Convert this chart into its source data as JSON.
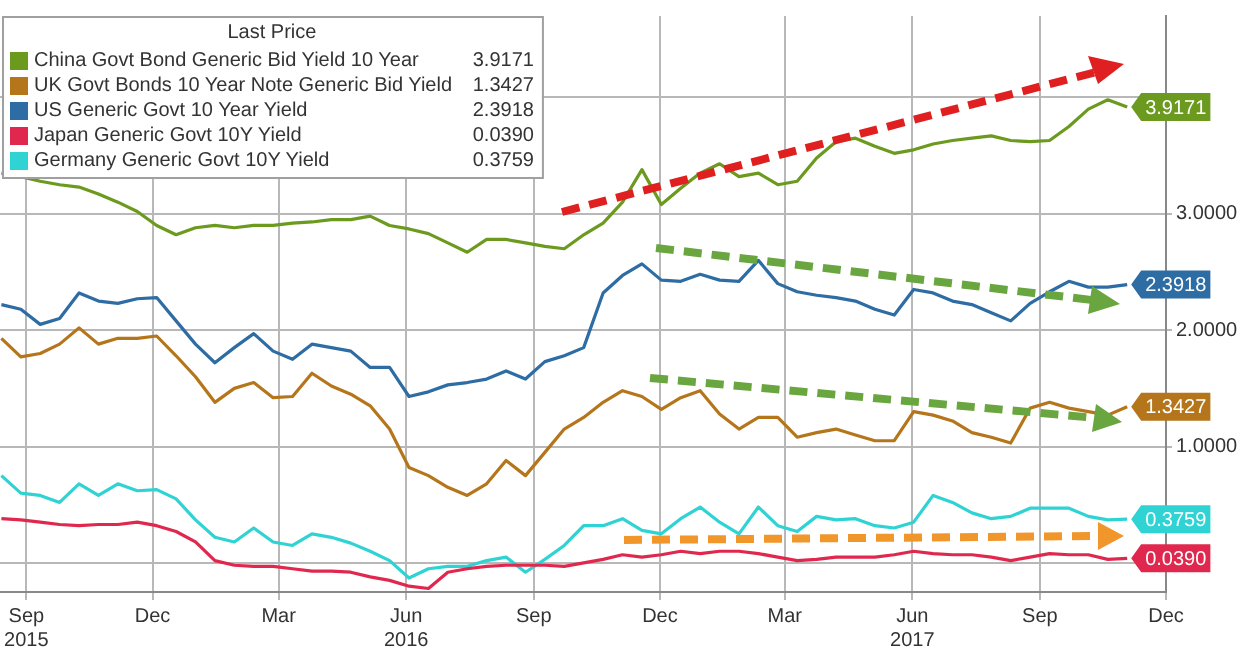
{
  "chart_data": {
    "type": "line",
    "legend_title": "Last Price",
    "legend": "top left",
    "grid": true,
    "marker": "none",
    "line_style": "solid",
    "x": [
      "2015-08-14",
      "2015-08-28",
      "2015-09-11",
      "2015-09-25",
      "2015-10-09",
      "2015-10-23",
      "2015-11-06",
      "2015-11-20",
      "2015-12-04",
      "2015-12-18",
      "2016-01-01",
      "2016-01-15",
      "2016-01-29",
      "2016-02-12",
      "2016-02-26",
      "2016-03-11",
      "2016-03-25",
      "2016-04-08",
      "2016-04-22",
      "2016-05-06",
      "2016-05-20",
      "2016-06-03",
      "2016-06-17",
      "2016-07-01",
      "2016-07-15",
      "2016-07-29",
      "2016-08-12",
      "2016-08-26",
      "2016-09-09",
      "2016-09-23",
      "2016-10-07",
      "2016-10-21",
      "2016-11-04",
      "2016-11-18",
      "2016-12-02",
      "2016-12-16",
      "2016-12-30",
      "2017-01-13",
      "2017-01-27",
      "2017-02-10",
      "2017-02-24",
      "2017-03-10",
      "2017-03-24",
      "2017-04-07",
      "2017-04-21",
      "2017-05-05",
      "2017-05-19",
      "2017-06-02",
      "2017-06-16",
      "2017-06-30",
      "2017-07-14",
      "2017-07-28",
      "2017-08-11",
      "2017-08-25",
      "2017-09-08",
      "2017-09-22",
      "2017-10-06",
      "2017-10-20",
      "2017-11-03"
    ],
    "xlim": [
      "2015-08-13",
      "2017-12-01"
    ],
    "xticks": [
      {
        "value": "2015-09-01",
        "label": "Sep\n2015"
      },
      {
        "value": "2015-12-01",
        "label": "Dec"
      },
      {
        "value": "2016-03-01",
        "label": "Mar"
      },
      {
        "value": "2016-06-01",
        "label": "Jun\n2016"
      },
      {
        "value": "2016-09-01",
        "label": "Sep"
      },
      {
        "value": "2016-12-01",
        "label": "Dec"
      },
      {
        "value": "2017-03-01",
        "label": "Mar"
      },
      {
        "value": "2017-06-01",
        "label": "Jun\n2017"
      },
      {
        "value": "2017-09-01",
        "label": "Sep"
      },
      {
        "value": "2017-12-01",
        "label": "Dec"
      }
    ],
    "ylim": [
      -0.25,
      4.7
    ],
    "yticks": [
      {
        "value": 0,
        "label": null
      },
      {
        "value": 1,
        "label": "1.0000"
      },
      {
        "value": 2,
        "label": "2.0000"
      },
      {
        "value": 3,
        "label": "3.0000"
      },
      {
        "value": 4,
        "label": null
      }
    ],
    "series": [
      {
        "name": "China Govt Bond Generic Bid Yield 10 Year",
        "color": "#6b9a1f",
        "values": [
          3.35,
          3.32,
          3.28,
          3.25,
          3.23,
          3.17,
          3.1,
          3.02,
          2.9,
          2.82,
          2.88,
          2.9,
          2.88,
          2.9,
          2.9,
          2.92,
          2.93,
          2.95,
          2.95,
          2.98,
          2.9,
          2.87,
          2.83,
          2.75,
          2.67,
          2.78,
          2.78,
          2.75,
          2.72,
          2.7,
          2.82,
          2.92,
          3.1,
          3.38,
          3.08,
          3.22,
          3.35,
          3.43,
          3.32,
          3.35,
          3.25,
          3.28,
          3.48,
          3.62,
          3.65,
          3.58,
          3.52,
          3.55,
          3.6,
          3.63,
          3.65,
          3.67,
          3.63,
          3.62,
          3.63,
          3.75,
          3.9,
          3.98,
          3.9171
        ],
        "value_labels": [
          null,
          null,
          null,
          null,
          null,
          null,
          null,
          null,
          null,
          null,
          null,
          null,
          null,
          null,
          null,
          null,
          null,
          null,
          null,
          null,
          null,
          null,
          null,
          null,
          null,
          null,
          null,
          null,
          null,
          null,
          null,
          null,
          null,
          null,
          null,
          null,
          null,
          null,
          null,
          null,
          null,
          null,
          null,
          null,
          null,
          null,
          null,
          null,
          null,
          null,
          null,
          null,
          null,
          null,
          null,
          null,
          null,
          null,
          "3.9171"
        ]
      },
      {
        "name": "UK Govt Bonds 10 Year Note Generic Bid Yield",
        "color": "#b5761b",
        "values": [
          1.93,
          1.77,
          1.8,
          1.88,
          2.02,
          1.88,
          1.93,
          1.93,
          1.95,
          1.78,
          1.6,
          1.38,
          1.5,
          1.55,
          1.42,
          1.43,
          1.63,
          1.52,
          1.45,
          1.35,
          1.15,
          0.82,
          0.75,
          0.65,
          0.58,
          0.68,
          0.88,
          0.75,
          0.95,
          1.15,
          1.25,
          1.38,
          1.48,
          1.43,
          1.32,
          1.42,
          1.48,
          1.28,
          1.15,
          1.25,
          1.25,
          1.08,
          1.12,
          1.15,
          1.1,
          1.05,
          1.05,
          1.3,
          1.27,
          1.22,
          1.12,
          1.08,
          1.03,
          1.33,
          1.38,
          1.33,
          1.3,
          1.27,
          1.3427
        ],
        "value_labels": [
          null,
          null,
          null,
          null,
          null,
          null,
          null,
          null,
          null,
          null,
          null,
          null,
          null,
          null,
          null,
          null,
          null,
          null,
          null,
          null,
          null,
          null,
          null,
          null,
          null,
          null,
          null,
          null,
          null,
          null,
          null,
          null,
          null,
          null,
          null,
          null,
          null,
          null,
          null,
          null,
          null,
          null,
          null,
          null,
          null,
          null,
          null,
          null,
          null,
          null,
          null,
          null,
          null,
          null,
          null,
          null,
          null,
          null,
          "1.3427"
        ]
      },
      {
        "name": "US Generic Govt 10 Year Yield",
        "color": "#2e6ca4",
        "values": [
          2.22,
          2.18,
          2.05,
          2.1,
          2.32,
          2.25,
          2.23,
          2.27,
          2.28,
          2.08,
          1.88,
          1.72,
          1.85,
          1.97,
          1.82,
          1.75,
          1.88,
          1.85,
          1.82,
          1.68,
          1.68,
          1.43,
          1.47,
          1.53,
          1.55,
          1.58,
          1.65,
          1.58,
          1.73,
          1.78,
          1.85,
          2.32,
          2.47,
          2.57,
          2.43,
          2.42,
          2.48,
          2.43,
          2.42,
          2.6,
          2.4,
          2.33,
          2.3,
          2.28,
          2.25,
          2.18,
          2.13,
          2.35,
          2.32,
          2.25,
          2.22,
          2.15,
          2.08,
          2.23,
          2.33,
          2.42,
          2.37,
          2.37,
          2.3918
        ],
        "value_labels": [
          null,
          null,
          null,
          null,
          null,
          null,
          null,
          null,
          null,
          null,
          null,
          null,
          null,
          null,
          null,
          null,
          null,
          null,
          null,
          null,
          null,
          null,
          null,
          null,
          null,
          null,
          null,
          null,
          null,
          null,
          null,
          null,
          null,
          null,
          null,
          null,
          null,
          null,
          null,
          null,
          null,
          null,
          null,
          null,
          null,
          null,
          null,
          null,
          null,
          null,
          null,
          null,
          null,
          null,
          null,
          null,
          null,
          null,
          "2.3918"
        ]
      },
      {
        "name": "Japan Generic Govt 10Y Yield",
        "color": "#e0284f",
        "values": [
          0.38,
          0.37,
          0.35,
          0.33,
          0.32,
          0.33,
          0.33,
          0.35,
          0.32,
          0.27,
          0.18,
          0.02,
          -0.02,
          -0.03,
          -0.03,
          -0.05,
          -0.07,
          -0.07,
          -0.08,
          -0.12,
          -0.15,
          -0.2,
          -0.22,
          -0.08,
          -0.05,
          -0.03,
          -0.02,
          -0.02,
          -0.02,
          -0.03,
          0.0,
          0.03,
          0.07,
          0.05,
          0.07,
          0.1,
          0.08,
          0.1,
          0.1,
          0.08,
          0.05,
          0.02,
          0.03,
          0.05,
          0.05,
          0.05,
          0.07,
          0.1,
          0.08,
          0.07,
          0.07,
          0.05,
          0.02,
          0.05,
          0.08,
          0.07,
          0.07,
          0.03,
          0.039
        ],
        "value_labels": [
          null,
          null,
          null,
          null,
          null,
          null,
          null,
          null,
          null,
          null,
          null,
          null,
          null,
          null,
          null,
          null,
          null,
          null,
          null,
          null,
          null,
          null,
          null,
          null,
          null,
          null,
          null,
          null,
          null,
          null,
          null,
          null,
          null,
          null,
          null,
          null,
          null,
          null,
          null,
          null,
          null,
          null,
          null,
          null,
          null,
          null,
          null,
          null,
          null,
          null,
          null,
          null,
          null,
          null,
          null,
          null,
          null,
          null,
          "0.0390"
        ]
      },
      {
        "name": "Germany Generic Govt 10Y Yield",
        "color": "#2fd3d3",
        "values": [
          0.75,
          0.6,
          0.58,
          0.52,
          0.68,
          0.58,
          0.68,
          0.62,
          0.63,
          0.55,
          0.37,
          0.22,
          0.18,
          0.3,
          0.18,
          0.15,
          0.25,
          0.22,
          0.17,
          0.1,
          0.02,
          -0.13,
          -0.05,
          -0.03,
          -0.03,
          0.02,
          0.05,
          -0.08,
          0.03,
          0.15,
          0.32,
          0.32,
          0.38,
          0.28,
          0.25,
          0.38,
          0.48,
          0.35,
          0.25,
          0.48,
          0.32,
          0.27,
          0.4,
          0.37,
          0.38,
          0.32,
          0.3,
          0.35,
          0.58,
          0.52,
          0.43,
          0.38,
          0.4,
          0.47,
          0.47,
          0.47,
          0.4,
          0.37,
          0.3759
        ],
        "value_labels": [
          null,
          null,
          null,
          null,
          null,
          null,
          null,
          null,
          null,
          null,
          null,
          null,
          null,
          null,
          null,
          null,
          null,
          null,
          null,
          null,
          null,
          null,
          null,
          null,
          null,
          null,
          null,
          null,
          null,
          null,
          null,
          null,
          null,
          null,
          null,
          null,
          null,
          null,
          null,
          null,
          null,
          null,
          null,
          null,
          null,
          null,
          null,
          null,
          null,
          null,
          null,
          null,
          null,
          null,
          null,
          null,
          null,
          null,
          "0.3759"
        ]
      }
    ]
  }
}
